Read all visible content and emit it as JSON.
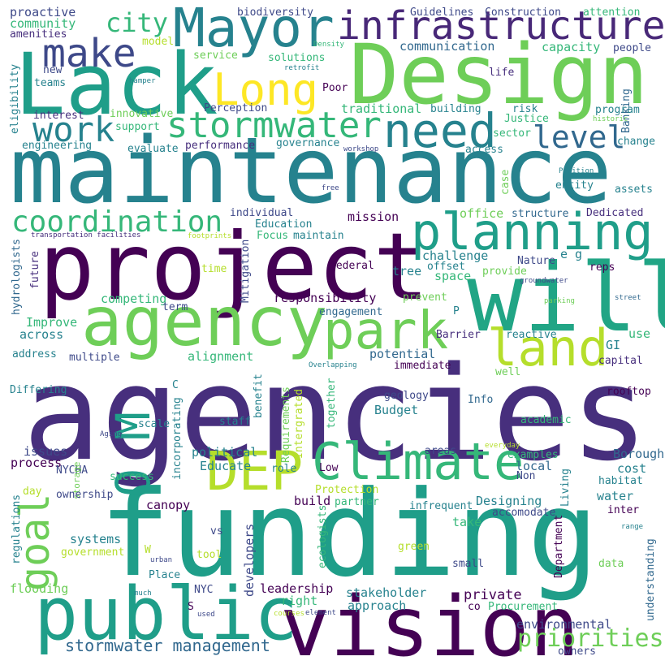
{
  "colors": {
    "background": "#ffffff",
    "palette": [
      "#440154",
      "#482878",
      "#3e4989",
      "#31688e",
      "#26828e",
      "#1f9e89",
      "#35b779",
      "#6ece58",
      "#b5de2b",
      "#fde725"
    ]
  },
  "words": [
    {
      "text": "agencies",
      "color": "#472f7d"
    },
    {
      "text": "maintenance",
      "color": "#26828e"
    },
    {
      "text": "funding",
      "color": "#1f9e89"
    },
    {
      "text": "project",
      "color": "#440154"
    },
    {
      "text": "Design",
      "color": "#6ece58"
    },
    {
      "text": "Lack",
      "color": "#1f9e89"
    },
    {
      "text": "will",
      "color": "#21a585"
    },
    {
      "text": "vision",
      "color": "#440154"
    },
    {
      "text": "public",
      "color": "#1f9e89"
    },
    {
      "text": "agency",
      "color": "#6ece58"
    },
    {
      "text": "Mayor",
      "color": "#26828e"
    },
    {
      "text": "infrastructure",
      "color": "#482878"
    },
    {
      "text": "park",
      "color": "#6ece58"
    },
    {
      "text": "planning",
      "color": "#1f9e89"
    },
    {
      "text": "Climate",
      "color": "#35b779"
    },
    {
      "text": "DEP",
      "color": "#b5de2b"
    },
    {
      "text": "land",
      "color": "#b5de2b"
    },
    {
      "text": "need",
      "color": "#26828e"
    },
    {
      "text": "O M",
      "color": "#1f9e89"
    },
    {
      "text": "goal",
      "color": "#6ece58"
    },
    {
      "text": "Long",
      "color": "#fde725"
    },
    {
      "text": "make",
      "color": "#3e4989"
    },
    {
      "text": "stormwater",
      "color": "#35b779"
    },
    {
      "text": "coordination",
      "color": "#35b779"
    },
    {
      "text": "work",
      "color": "#26828e"
    },
    {
      "text": "level",
      "color": "#31688e"
    },
    {
      "text": "city",
      "color": "#35b779"
    },
    {
      "text": "priorities",
      "color": "#6ece58"
    },
    {
      "text": "stormwater management",
      "color": "#31688e"
    },
    {
      "text": "proactive",
      "color": "#3e4989"
    },
    {
      "text": "community",
      "color": "#35b779"
    },
    {
      "text": "amenities",
      "color": "#472f7d"
    },
    {
      "text": "biodiversity",
      "color": "#3e4989"
    },
    {
      "text": "Guidelines",
      "color": "#3e4989"
    },
    {
      "text": "Construction",
      "color": "#3e4989"
    },
    {
      "text": "attention",
      "color": "#35b779"
    },
    {
      "text": "solutions",
      "color": "#35b779"
    },
    {
      "text": "communication",
      "color": "#31688e"
    },
    {
      "text": "capacity",
      "color": "#35b779"
    },
    {
      "text": "people",
      "color": "#3e4989"
    },
    {
      "text": "model",
      "color": "#b5de2b"
    },
    {
      "text": "service",
      "color": "#6ece58"
    },
    {
      "text": "Density",
      "color": "#35b779"
    },
    {
      "text": "retrofit",
      "color": "#26828e"
    },
    {
      "text": "new",
      "color": "#3e4989"
    },
    {
      "text": "teams",
      "color": "#26828e"
    },
    {
      "text": "hamper",
      "color": "#26828e"
    },
    {
      "text": "Poor",
      "color": "#440154"
    },
    {
      "text": "life",
      "color": "#472f7d"
    },
    {
      "text": "Banking",
      "color": "#31688e"
    },
    {
      "text": "eligibility",
      "color": "#26828e"
    },
    {
      "text": "interest",
      "color": "#472f7d"
    },
    {
      "text": "innovative",
      "color": "#6ece58"
    },
    {
      "text": "Perception",
      "color": "#3e4989"
    },
    {
      "text": "traditional",
      "color": "#35b779"
    },
    {
      "text": "building",
      "color": "#26828e"
    },
    {
      "text": "risk",
      "color": "#26828e"
    },
    {
      "text": "program",
      "color": "#26828e"
    },
    {
      "text": "Justice",
      "color": "#35b779"
    },
    {
      "text": "historic",
      "color": "#6ece58"
    },
    {
      "text": "support",
      "color": "#35b779"
    },
    {
      "text": "engineering",
      "color": "#26828e"
    },
    {
      "text": "evaluate",
      "color": "#26828e"
    },
    {
      "text": "performance",
      "color": "#472f7d"
    },
    {
      "text": "governance",
      "color": "#26828e"
    },
    {
      "text": "sector",
      "color": "#35b779"
    },
    {
      "text": "change",
      "color": "#26828e"
    },
    {
      "text": "workshop",
      "color": "#3e4989"
    },
    {
      "text": "access",
      "color": "#26828e"
    },
    {
      "text": "Position",
      "color": "#26828e"
    },
    {
      "text": "free",
      "color": "#3e4989"
    },
    {
      "text": "case",
      "color": "#6ece58"
    },
    {
      "text": "entity",
      "color": "#26828e"
    },
    {
      "text": "assets",
      "color": "#26828e"
    },
    {
      "text": "individual",
      "color": "#3e4989"
    },
    {
      "text": "Education",
      "color": "#26828e"
    },
    {
      "text": "mission",
      "color": "#440154"
    },
    {
      "text": "office",
      "color": "#6ece58"
    },
    {
      "text": "structure",
      "color": "#31688e"
    },
    {
      "text": "Dedicated",
      "color": "#472f7d"
    },
    {
      "text": "transportation facilities",
      "color": "#472f7d"
    },
    {
      "text": "footprints",
      "color": "#b5de2b"
    },
    {
      "text": "Focus",
      "color": "#35b779"
    },
    {
      "text": "maintain",
      "color": "#26828e"
    },
    {
      "text": "hydrologists",
      "color": "#31688e"
    },
    {
      "text": "future",
      "color": "#472f7d"
    },
    {
      "text": "Mitigation",
      "color": "#3e4989"
    },
    {
      "text": "time",
      "color": "#b5de2b"
    },
    {
      "text": "federal",
      "color": "#440154"
    },
    {
      "text": "tree",
      "color": "#26828e"
    },
    {
      "text": "offset",
      "color": "#26828e"
    },
    {
      "text": "challenge",
      "color": "#26828e"
    },
    {
      "text": "Nature",
      "color": "#3e4989"
    },
    {
      "text": "e g",
      "color": "#26828e"
    },
    {
      "text": "space",
      "color": "#35b779"
    },
    {
      "text": "provide",
      "color": "#6ece58"
    },
    {
      "text": "reps",
      "color": "#440154"
    },
    {
      "text": "groundwater",
      "color": "#3e4989"
    },
    {
      "text": "competing",
      "color": "#35b779"
    },
    {
      "text": "responsibility",
      "color": "#440154"
    },
    {
      "text": "prevent",
      "color": "#6ece58"
    },
    {
      "text": "parking",
      "color": "#6ece58"
    },
    {
      "text": "street",
      "color": "#31688e"
    },
    {
      "text": "term",
      "color": "#3e4989"
    },
    {
      "text": "engagement",
      "color": "#31688e"
    },
    {
      "text": "P",
      "color": "#26828e"
    },
    {
      "text": "Improve",
      "color": "#35b779"
    },
    {
      "text": "across",
      "color": "#26828e"
    },
    {
      "text": "Barrier",
      "color": "#472f7d"
    },
    {
      "text": "reactive",
      "color": "#26828e"
    },
    {
      "text": "use",
      "color": "#35b779"
    },
    {
      "text": "GI",
      "color": "#26828e"
    },
    {
      "text": "capital",
      "color": "#472f7d"
    },
    {
      "text": "address",
      "color": "#26828e"
    },
    {
      "text": "multiple",
      "color": "#3e4989"
    },
    {
      "text": "alignment",
      "color": "#35b779"
    },
    {
      "text": "potential",
      "color": "#31688e"
    },
    {
      "text": "immediate",
      "color": "#440154"
    },
    {
      "text": "Overlapping",
      "color": "#26828e"
    },
    {
      "text": "well",
      "color": "#6ece58"
    },
    {
      "text": "Differing",
      "color": "#26828e"
    },
    {
      "text": "C",
      "color": "#26828e"
    },
    {
      "text": "benefit",
      "color": "#26828e"
    },
    {
      "text": "Requirements",
      "color": "#6ece58"
    },
    {
      "text": "Intergrated",
      "color": "#b5de2b"
    },
    {
      "text": "together",
      "color": "#35b779"
    },
    {
      "text": "geology",
      "color": "#3e4989"
    },
    {
      "text": "rooftop",
      "color": "#440154"
    },
    {
      "text": "Budget",
      "color": "#26828e"
    },
    {
      "text": "Info",
      "color": "#31688e"
    },
    {
      "text": "academic",
      "color": "#35b779"
    },
    {
      "text": "Aging",
      "color": "#3e4989"
    },
    {
      "text": "scale",
      "color": "#26828e"
    },
    {
      "text": "staff",
      "color": "#26828e"
    },
    {
      "text": "incorporating",
      "color": "#26828e"
    },
    {
      "text": "issues",
      "color": "#3e4989"
    },
    {
      "text": "political",
      "color": "#26828e"
    },
    {
      "text": "areas",
      "color": "#3e4989"
    },
    {
      "text": "everyday",
      "color": "#b5de2b"
    },
    {
      "text": "Borough",
      "color": "#31688e"
    },
    {
      "text": "process",
      "color": "#440154"
    },
    {
      "text": "NYCHA",
      "color": "#3e4989"
    },
    {
      "text": "Educate",
      "color": "#26828e"
    },
    {
      "text": "examples",
      "color": "#35b779"
    },
    {
      "text": "local",
      "color": "#31688e"
    },
    {
      "text": "cost",
      "color": "#26828e"
    },
    {
      "text": "success",
      "color": "#35b779"
    },
    {
      "text": "storage",
      "color": "#6ece58"
    },
    {
      "text": "role",
      "color": "#26828e"
    },
    {
      "text": "Low",
      "color": "#440154"
    },
    {
      "text": "Non",
      "color": "#3e4989"
    },
    {
      "text": "Living",
      "color": "#26828e"
    },
    {
      "text": "habitat",
      "color": "#26828e"
    },
    {
      "text": "day",
      "color": "#b5de2b"
    },
    {
      "text": "ownership",
      "color": "#3e4989"
    },
    {
      "text": "Protection",
      "color": "#b5de2b"
    },
    {
      "text": "water",
      "color": "#26828e"
    },
    {
      "text": "canopy",
      "color": "#440154"
    },
    {
      "text": "build",
      "color": "#440154"
    },
    {
      "text": "partner",
      "color": "#35b779"
    },
    {
      "text": "Designing",
      "color": "#26828e"
    },
    {
      "text": "accomodate",
      "color": "#3e4989"
    },
    {
      "text": "infrequent",
      "color": "#26828e"
    },
    {
      "text": "inter",
      "color": "#440154"
    },
    {
      "text": "regulations",
      "color": "#26828e"
    },
    {
      "text": "systems",
      "color": "#26828e"
    },
    {
      "text": "vs",
      "color": "#3e4989"
    },
    {
      "text": "developers",
      "color": "#3e4989"
    },
    {
      "text": "ecologists",
      "color": "#35b779"
    },
    {
      "text": "take",
      "color": "#35b779"
    },
    {
      "text": "Department",
      "color": "#440154"
    },
    {
      "text": "range",
      "color": "#26828e"
    },
    {
      "text": "government",
      "color": "#b5de2b"
    },
    {
      "text": "W",
      "color": "#b5de2b"
    },
    {
      "text": "tool",
      "color": "#b5de2b"
    },
    {
      "text": "green",
      "color": "#b5de2b"
    },
    {
      "text": "urban",
      "color": "#3e4989"
    },
    {
      "text": "small",
      "color": "#3e4989"
    },
    {
      "text": "understanding",
      "color": "#31688e"
    },
    {
      "text": "data",
      "color": "#6ece58"
    },
    {
      "text": "flooding",
      "color": "#6ece58"
    },
    {
      "text": "Place",
      "color": "#26828e"
    },
    {
      "text": "much",
      "color": "#26828e"
    },
    {
      "text": "NYC",
      "color": "#3e4989"
    },
    {
      "text": "leadership",
      "color": "#440154"
    },
    {
      "text": "stakeholder",
      "color": "#26828e"
    },
    {
      "text": "private",
      "color": "#440154"
    },
    {
      "text": "right",
      "color": "#35b779"
    },
    {
      "text": "approach",
      "color": "#26828e"
    },
    {
      "text": "co",
      "color": "#440154"
    },
    {
      "text": "Procurement",
      "color": "#35b779"
    },
    {
      "text": "S",
      "color": "#440154"
    },
    {
      "text": "used",
      "color": "#3e4989"
    },
    {
      "text": "courses",
      "color": "#b5de2b"
    },
    {
      "text": "element",
      "color": "#3e4989"
    },
    {
      "text": "environmental",
      "color": "#3e4989"
    },
    {
      "text": "owners",
      "color": "#3e4989"
    }
  ]
}
